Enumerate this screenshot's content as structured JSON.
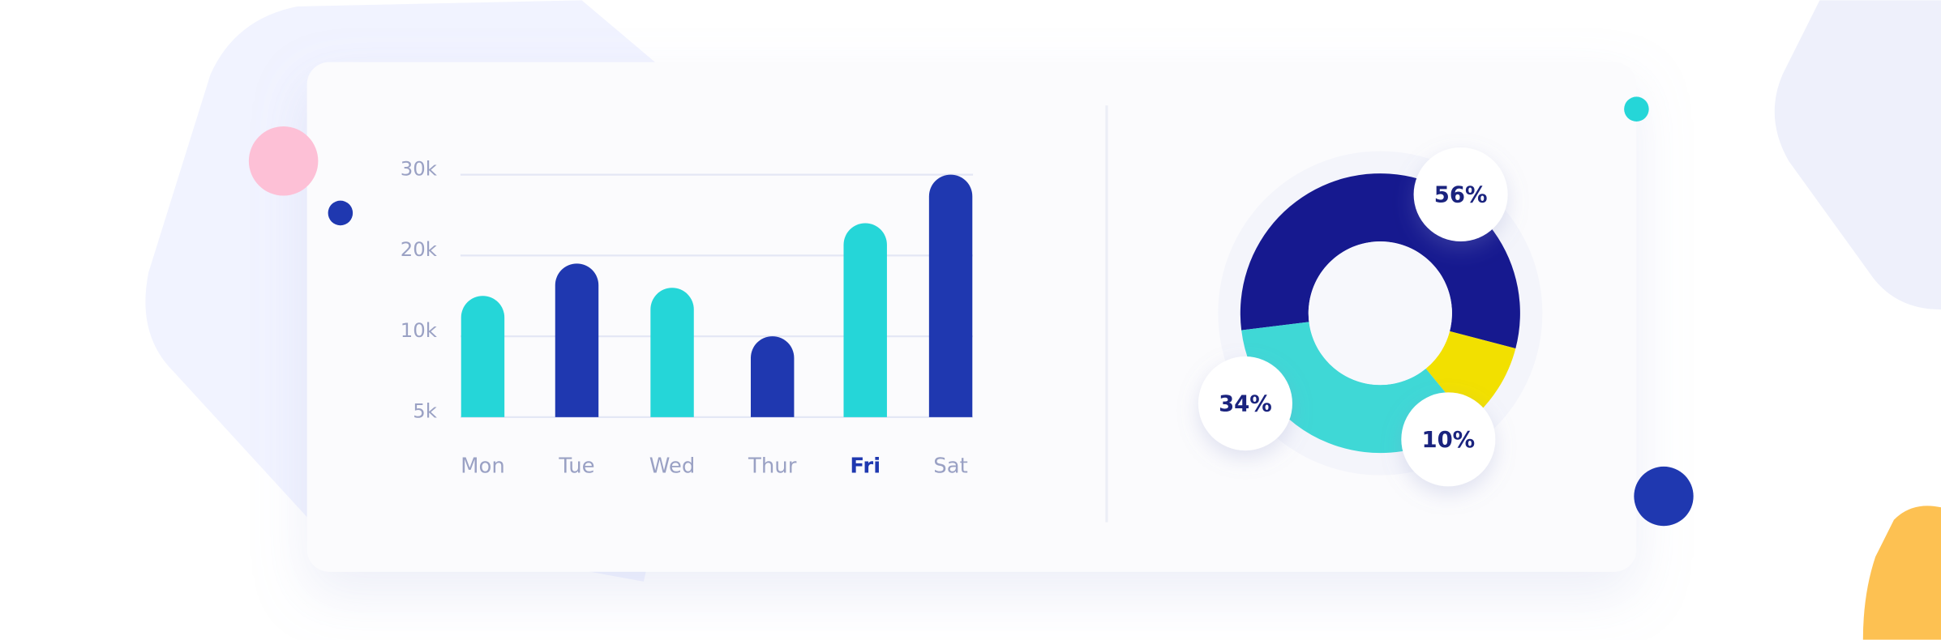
{
  "chart_data": [
    {
      "type": "bar",
      "categories": [
        "Mon",
        "Tue",
        "Wed",
        "Thur",
        "Fri",
        "Sat"
      ],
      "values": [
        15000,
        19000,
        16000,
        10000,
        24000,
        30000
      ],
      "colors": [
        "#25d6d8",
        "#1f38b0",
        "#25d6d8",
        "#1f38b0",
        "#25d6d8",
        "#1f38b0"
      ],
      "ylim": [
        5000,
        30000
      ],
      "yticks": [
        {
          "value": 5000,
          "label": "5k"
        },
        {
          "value": 10000,
          "label": "10k"
        },
        {
          "value": 20000,
          "label": "20k"
        },
        {
          "value": 30000,
          "label": "30k"
        }
      ],
      "grid": true,
      "highlight": 4
    },
    {
      "type": "pie",
      "values": [
        56,
        10,
        34
      ],
      "value_labels": [
        "56%",
        "10%",
        "34%"
      ],
      "colors": [
        "#16198f",
        "#f2e000",
        "#3fd8d6"
      ],
      "donut": true
    }
  ]
}
